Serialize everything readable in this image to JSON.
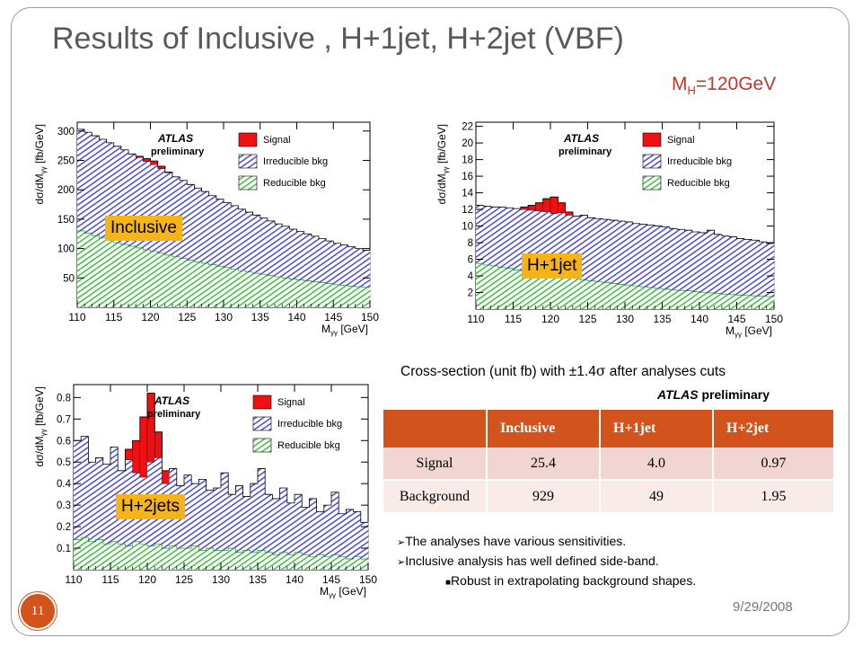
{
  "slide": {
    "title": "Results of Inclusive , H+1jet, H+2jet (VBF)",
    "mass_label_main": "M",
    "mass_label_sub": "H",
    "mass_label_value": "=120GeV",
    "date": "9/29/2008",
    "page_number": "11"
  },
  "legend": {
    "atlas": "ATLAS",
    "preliminary": "preliminary",
    "signal": "Signal",
    "irreducible": "Irreducible bkg",
    "reducible": "Reducible bkg"
  },
  "axis": {
    "xlabel": "M",
    "xlabel_sub": "γγ",
    "xlabel_unit": "[GeV]",
    "ylabel": "dσ/dM",
    "ylabel_sub": "γγ",
    "ylabel_unit": "[fb/GeV]"
  },
  "colors": {
    "signal": "#ee1111",
    "irreducible": "#3b3bd0",
    "reducible": "#2fb82f",
    "tag": "#f7b417",
    "accent": "#d2531c"
  },
  "chart_data": [
    {
      "type": "area",
      "tag": "Inclusive",
      "xlim": [
        110,
        150
      ],
      "ylim": [
        0,
        315
      ],
      "xticks": [
        "110",
        "115",
        "120",
        "125",
        "130",
        "135",
        "140",
        "145",
        "150"
      ],
      "yticks": [
        "50",
        "100",
        "150",
        "200",
        "250",
        "300"
      ],
      "ytick_values": [
        50,
        100,
        150,
        200,
        250,
        300
      ],
      "x": [
        110,
        111,
        112,
        113,
        114,
        115,
        116,
        117,
        118,
        119,
        120,
        121,
        122,
        123,
        124,
        125,
        126,
        127,
        128,
        129,
        130,
        131,
        132,
        133,
        134,
        135,
        136,
        137,
        138,
        139,
        140,
        141,
        142,
        143,
        144,
        145,
        146,
        147,
        148,
        149
      ],
      "series": [
        {
          "name": "Reducible bkg",
          "values": [
            130,
            126,
            122,
            118,
            114,
            110,
            107,
            104,
            101,
            98,
            95,
            92,
            89,
            86,
            83,
            80,
            77.5,
            75,
            72.5,
            70,
            67.5,
            65,
            62.5,
            60,
            58,
            56,
            54,
            52,
            50,
            48,
            46.5,
            45,
            43.5,
            42,
            40.5,
            39,
            37.5,
            36,
            35,
            34
          ]
        },
        {
          "name": "Irreducible bkg",
          "values": [
            303,
            298,
            292,
            286,
            280,
            274,
            268,
            261,
            255,
            248,
            243,
            236,
            229,
            222,
            216,
            209,
            203,
            197,
            190,
            184,
            178,
            173,
            167,
            162,
            157,
            152,
            147,
            142,
            138,
            133,
            129,
            125,
            121,
            117,
            113,
            109,
            106,
            103,
            100,
            97
          ]
        },
        {
          "name": "Signal",
          "values": [
            0,
            0,
            0,
            0,
            0,
            0,
            0,
            0,
            2,
            5,
            6,
            4,
            1,
            0,
            0,
            0,
            0,
            0,
            0,
            0,
            0,
            0,
            0,
            0,
            0,
            0,
            0,
            0,
            0,
            0,
            0,
            0,
            0,
            0,
            0,
            0,
            0,
            0,
            0,
            0
          ]
        }
      ]
    },
    {
      "type": "area",
      "tag": "H+1jet",
      "xlim": [
        110,
        150
      ],
      "ylim": [
        0,
        22.5
      ],
      "xticks": [
        "110",
        "115",
        "120",
        "125",
        "130",
        "135",
        "140",
        "145",
        "150"
      ],
      "yticks": [
        "2",
        "4",
        "6",
        "8",
        "10",
        "12",
        "14",
        "16",
        "18",
        "20",
        "22"
      ],
      "ytick_values": [
        2,
        4,
        6,
        8,
        10,
        12,
        14,
        16,
        18,
        20,
        22
      ],
      "x": [
        110,
        111,
        112,
        113,
        114,
        115,
        116,
        117,
        118,
        119,
        120,
        121,
        122,
        123,
        124,
        125,
        126,
        127,
        128,
        129,
        130,
        131,
        132,
        133,
        134,
        135,
        136,
        137,
        138,
        139,
        140,
        141,
        142,
        143,
        144,
        145,
        146,
        147,
        148,
        149
      ],
      "series": [
        {
          "name": "Reducible bkg",
          "values": [
            5.5,
            5.3,
            5.2,
            5.0,
            4.9,
            4.7,
            4.6,
            4.4,
            4.3,
            4.2,
            4.0,
            3.9,
            3.8,
            3.7,
            3.5,
            3.4,
            3.3,
            3.2,
            3.1,
            3.0,
            2.9,
            2.8,
            2.7,
            2.6,
            2.5,
            2.4,
            2.3,
            2.25,
            2.2,
            2.1,
            2.0,
            1.95,
            1.9,
            1.8,
            1.75,
            1.7,
            1.65,
            1.6,
            1.55,
            1.5
          ]
        },
        {
          "name": "Irreducible bkg",
          "values": [
            12.5,
            12.4,
            12.3,
            12.3,
            12.2,
            12.1,
            12.0,
            11.9,
            11.8,
            11.7,
            11.5,
            11.6,
            11.3,
            11.2,
            11.3,
            11.0,
            10.9,
            10.8,
            10.7,
            10.6,
            10.5,
            10.3,
            10.2,
            10.1,
            10.0,
            9.9,
            9.7,
            9.6,
            9.5,
            9.3,
            9.2,
            9.5,
            9.0,
            8.8,
            8.7,
            8.5,
            8.4,
            8.3,
            8.1,
            7.9
          ]
        },
        {
          "name": "Signal",
          "values": [
            0,
            0,
            0,
            0,
            0,
            0,
            0.3,
            0.6,
            1.0,
            1.6,
            2.0,
            1.2,
            0.4,
            0,
            0,
            0,
            0,
            0,
            0,
            0,
            0,
            0,
            0,
            0,
            0,
            0,
            0,
            0,
            0,
            0,
            0,
            0,
            0,
            0,
            0,
            0,
            0,
            0,
            0,
            0
          ]
        }
      ]
    },
    {
      "type": "area",
      "tag": "H+2jets",
      "xlim": [
        110,
        150
      ],
      "ylim": [
        0,
        0.86
      ],
      "xticks": [
        "110",
        "115",
        "120",
        "125",
        "130",
        "135",
        "140",
        "145",
        "150"
      ],
      "yticks": [
        "0.1",
        "0.2",
        "0.3",
        "0.4",
        "0.5",
        "0.6",
        "0.7",
        "0.8"
      ],
      "ytick_values": [
        0.1,
        0.2,
        0.3,
        0.4,
        0.5,
        0.6,
        0.7,
        0.8
      ],
      "x": [
        110,
        111,
        112,
        113,
        114,
        115,
        116,
        117,
        118,
        119,
        120,
        121,
        122,
        123,
        124,
        125,
        126,
        127,
        128,
        129,
        130,
        131,
        132,
        133,
        134,
        135,
        136,
        137,
        138,
        139,
        140,
        141,
        142,
        143,
        144,
        145,
        146,
        147,
        148,
        149
      ],
      "series": [
        {
          "name": "Reducible bkg",
          "values": [
            0.14,
            0.15,
            0.13,
            0.14,
            0.12,
            0.13,
            0.12,
            0.11,
            0.13,
            0.12,
            0.11,
            0.12,
            0.1,
            0.11,
            0.1,
            0.1,
            0.11,
            0.09,
            0.1,
            0.09,
            0.09,
            0.1,
            0.08,
            0.09,
            0.08,
            0.09,
            0.08,
            0.07,
            0.08,
            0.07,
            0.08,
            0.07,
            0.06,
            0.07,
            0.06,
            0.07,
            0.06,
            0.05,
            0.06,
            0.05
          ]
        },
        {
          "name": "Irreducible bkg",
          "values": [
            0.6,
            0.62,
            0.5,
            0.52,
            0.49,
            0.57,
            0.46,
            0.51,
            0.45,
            0.43,
            0.5,
            0.52,
            0.4,
            0.47,
            0.39,
            0.44,
            0.4,
            0.42,
            0.37,
            0.38,
            0.45,
            0.35,
            0.39,
            0.34,
            0.4,
            0.47,
            0.35,
            0.33,
            0.38,
            0.31,
            0.35,
            0.29,
            0.33,
            0.27,
            0.3,
            0.36,
            0.26,
            0.28,
            0.27,
            0.22
          ]
        },
        {
          "name": "Signal",
          "values": [
            0,
            0,
            0,
            0,
            0,
            0,
            0,
            0.05,
            0.15,
            0.28,
            0.32,
            0.12,
            0.06,
            0,
            0,
            0,
            0,
            0,
            0,
            0,
            0,
            0,
            0,
            0,
            0,
            0,
            0,
            0,
            0,
            0,
            0,
            0,
            0,
            0,
            0,
            0,
            0,
            0,
            0,
            0
          ]
        }
      ]
    }
  ],
  "results": {
    "caption_prefix": "Cross-section (unit fb) with ±1.4",
    "caption_sigma": "σ",
    "caption_suffix": " after analyses cuts",
    "atlas": "ATLAS",
    "preliminary": " preliminary",
    "headers": [
      "",
      "Inclusive",
      "H+1jet",
      "H+2jet"
    ],
    "rows": [
      [
        "Signal",
        "25.4",
        "4.0",
        "0.97"
      ],
      [
        "Background",
        "929",
        "49",
        "1.95"
      ]
    ]
  },
  "bullets": [
    "The analyses have various sensitivities.",
    "Inclusive analysis has well defined side-band."
  ],
  "sub_bullets": [
    "Robust in extrapolating background shapes."
  ]
}
